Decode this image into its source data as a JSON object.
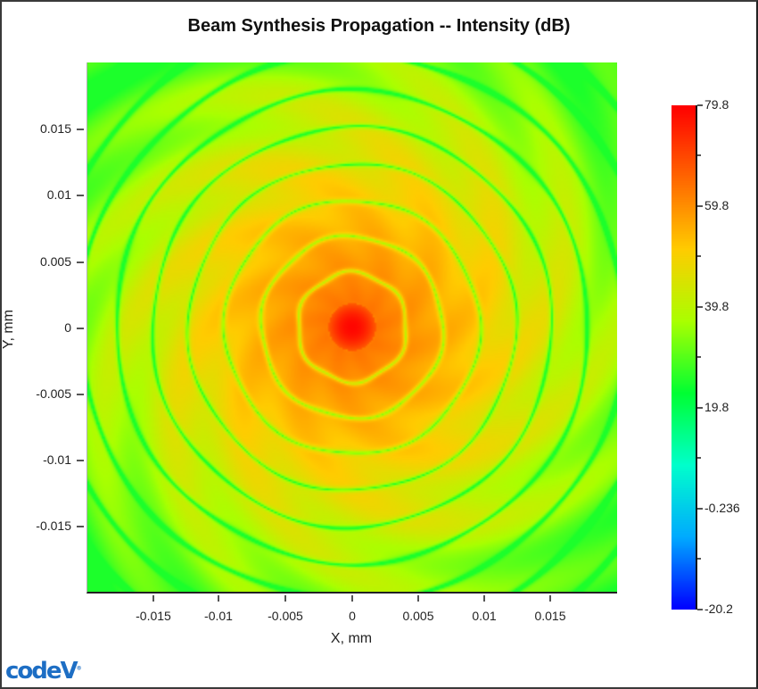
{
  "window": {
    "title": "Beam Synthesis Propagation -- Intensity (dB)"
  },
  "logo": {
    "text": "code",
    "suffix": "V",
    "mark": "®"
  },
  "axes": {
    "x_title": "X, mm",
    "y_title": "Y, mm",
    "x_ticks": [
      "-0.015",
      "-0.01",
      "-0.005",
      "0",
      "0.005",
      "0.01",
      "0.015"
    ],
    "y_ticks": [
      "0.015",
      "0.01",
      "0.005",
      "0",
      "-0.005",
      "-0.01",
      "-0.015"
    ]
  },
  "colorbar": {
    "labels": [
      "79.8",
      "59.8",
      "39.8",
      "19.8",
      "-0.236",
      "-20.2"
    ],
    "min": -20.2,
    "max": 79.8,
    "colors": [
      "#0000ff",
      "#00aaff",
      "#00ffcc",
      "#00ff33",
      "#aaff00",
      "#ffcc00",
      "#ff6600",
      "#ff0000"
    ]
  },
  "chart_data": {
    "type": "heatmap",
    "title": "Beam Synthesis Propagation -- Intensity (dB)",
    "xlabel": "X, mm",
    "ylabel": "Y, mm",
    "xlim": [
      -0.0202,
      0.0202
    ],
    "ylim": [
      -0.0202,
      0.0202
    ],
    "x_ticks": [
      -0.015,
      -0.01,
      -0.005,
      0,
      0.005,
      0.01,
      0.015
    ],
    "y_ticks": [
      -0.015,
      -0.01,
      -0.005,
      0,
      0.005,
      0.01,
      0.015
    ],
    "colorbar": {
      "label": "Intensity (dB)",
      "range": [
        -20.2,
        79.8
      ],
      "ticks": [
        79.8,
        59.8,
        39.8,
        19.8,
        -0.236,
        -20.2
      ],
      "colormap": "blue-cyan-green-yellow-red"
    },
    "description": "Concentric diffraction (Airy-like) ring pattern centered at (0,0); central peak ~79.8 dB (red), rings decaying through orange/yellow to green (~35-45 dB) toward edges with cyan null streaks",
    "peak": {
      "x": 0,
      "y": 0,
      "value": 79.8
    },
    "grid": false,
    "legend": "colorbar right"
  }
}
